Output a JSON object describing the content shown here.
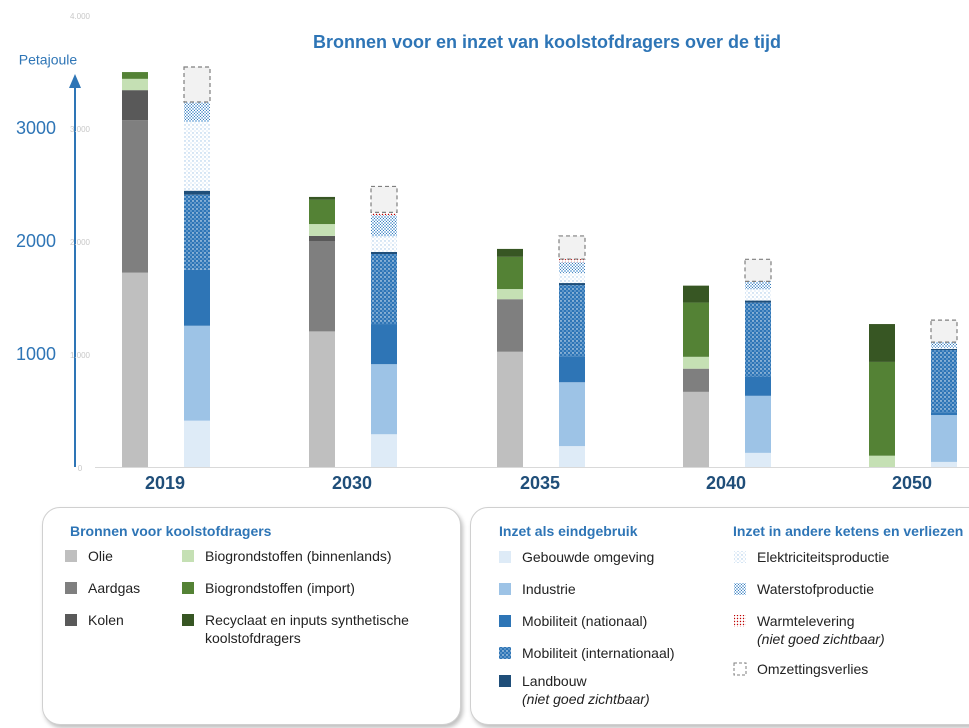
{
  "chart_data": {
    "type": "bar",
    "title": "Bronnen voor en inzet van koolstofdragers over de tijd",
    "y_label": "Petajoule",
    "categories": [
      "2019",
      "2030",
      "2035",
      "2040",
      "2050"
    ],
    "ylim": [
      0,
      4000
    ],
    "yticks": [
      0,
      {
        "value": 1000,
        "label": "1.000"
      },
      {
        "value": 2000,
        "label": "2.000"
      },
      {
        "value": 3000,
        "label": "3.000"
      },
      {
        "value": 4000,
        "label": "4.000"
      }
    ],
    "axis_labels": [
      1000,
      2000,
      3000
    ],
    "legend_groups": [
      "Bronnen voor koolstofdragers",
      "Inzet als eindgebruik",
      "Inzet in andere ketens en verliezen"
    ],
    "series": [
      {
        "name": "Olie",
        "stack": "bronnen",
        "color": "#bfbfbf",
        "values": [
          1720,
          1200,
          1020,
          665,
          0
        ]
      },
      {
        "name": "Aardgas",
        "stack": "bronnen",
        "color": "#7f7f7f",
        "values": [
          1350,
          800,
          465,
          205,
          0
        ]
      },
      {
        "name": "Kolen",
        "stack": "bronnen",
        "color": "#595959",
        "values": [
          265,
          45,
          0,
          0,
          0
        ]
      },
      {
        "name": "Biogrondstoffen (binnenlands)",
        "stack": "bronnen",
        "color": "#c5e0b4",
        "values": [
          100,
          105,
          90,
          105,
          100
        ]
      },
      {
        "name": "Biogrondstoffen (import)",
        "stack": "bronnen",
        "color": "#548235",
        "values": [
          60,
          215,
          285,
          480,
          830
        ]
      },
      {
        "name": "Recyclaat en inputs synthetische koolstofdragers",
        "stack": "bronnen",
        "color": "#375623",
        "values": [
          0,
          25,
          70,
          150,
          335
        ]
      },
      {
        "name": "Gebouwde omgeving",
        "stack": "inzet",
        "color": "#deebf7",
        "values": [
          410,
          290,
          185,
          125,
          45
        ]
      },
      {
        "name": "Industrie",
        "stack": "inzet",
        "color": "#9dc3e6",
        "values": [
          840,
          620,
          565,
          505,
          415
        ]
      },
      {
        "name": "Mobiliteit (nationaal)",
        "stack": "inzet",
        "color": "#2e75b6",
        "values": [
          495,
          355,
          230,
          170,
          25
        ]
      },
      {
        "name": "Mobiliteit (internationaal)",
        "stack": "inzet",
        "color": "#2e75b6",
        "pattern": "dots-white",
        "values": [
          665,
          620,
          630,
          655,
          550
        ]
      },
      {
        "name": "Landbouw",
        "note": "(niet goed zichtbaar)",
        "stack": "inzet",
        "color": "#1f4e79",
        "values": [
          35,
          18,
          18,
          18,
          10
        ]
      },
      {
        "name": "Elektriciteitsproductie",
        "stack": "inzet",
        "color": "#9dc3e6",
        "pattern": "dots-sparse",
        "values": [
          610,
          140,
          90,
          100,
          10
        ]
      },
      {
        "name": "Waterstofproductie",
        "stack": "inzet",
        "color": "#5b9bd5",
        "pattern": "dots-dense",
        "values": [
          170,
          185,
          95,
          70,
          50
        ]
      },
      {
        "name": "Warmtelevering",
        "note": "(niet goed zichtbaar)",
        "stack": "inzet",
        "color": "#c00000",
        "pattern": "dots-red",
        "values": [
          5,
          25,
          27,
          0,
          0
        ]
      },
      {
        "name": "Omzettingsverlies",
        "stack": "inzet",
        "color": "#f2f2f2",
        "pattern": "dashed",
        "values": [
          310,
          230,
          205,
          195,
          195
        ]
      }
    ]
  }
}
